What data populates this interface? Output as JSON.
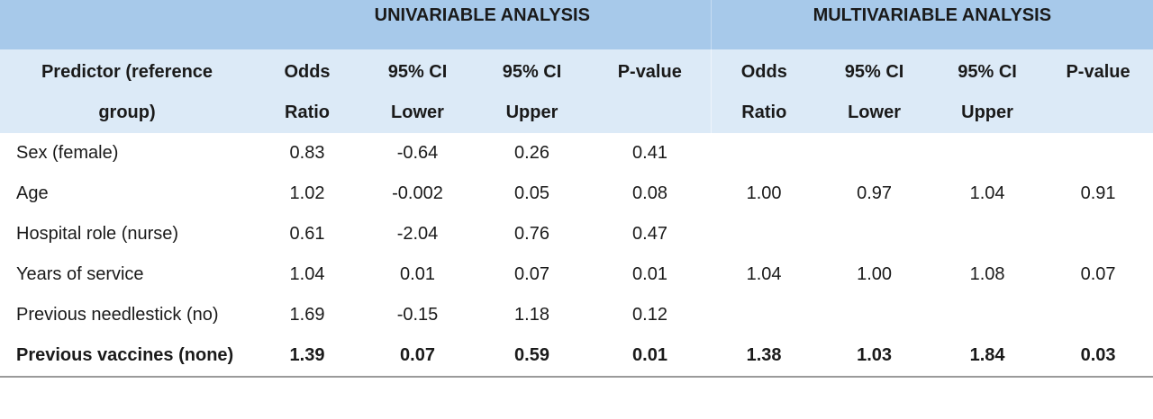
{
  "table": {
    "groups": {
      "univariable": "UNIVARIABLE ANALYSIS",
      "multivariable": "MULTIVARIABLE ANALYSIS"
    },
    "headers": {
      "predictor_line1": "Predictor (reference",
      "predictor_line2": "group)",
      "uni_or_line1": "Odds",
      "uni_or_line2": "Ratio",
      "uni_lower_line1": "95% CI",
      "uni_lower_line2": "Lower",
      "uni_upper_line1": "95% CI",
      "uni_upper_line2": "Upper",
      "uni_p": "P-value",
      "multi_or_line1": "Odds",
      "multi_or_line2": "Ratio",
      "multi_lower_line1": "95% CI",
      "multi_lower_line2": "Lower",
      "multi_upper_line1": "95% CI",
      "multi_upper_line2": "Upper",
      "multi_p": "P-value"
    },
    "rows": [
      {
        "predictor": "Sex (female)",
        "uni_or": "0.83",
        "uni_lower": "-0.64",
        "uni_upper": "0.26",
        "uni_p": "0.41",
        "multi_or": "",
        "multi_lower": "",
        "multi_upper": "",
        "multi_p": ""
      },
      {
        "predictor": "Age",
        "uni_or": "1.02",
        "uni_lower": "-0.002",
        "uni_upper": "0.05",
        "uni_p": "0.08",
        "multi_or": "1.00",
        "multi_lower": "0.97",
        "multi_upper": "1.04",
        "multi_p": "0.91"
      },
      {
        "predictor": "Hospital role (nurse)",
        "uni_or": "0.61",
        "uni_lower": "-2.04",
        "uni_upper": "0.76",
        "uni_p": "0.47",
        "multi_or": "",
        "multi_lower": "",
        "multi_upper": "",
        "multi_p": ""
      },
      {
        "predictor": "Years of service",
        "uni_or": "1.04",
        "uni_lower": "0.01",
        "uni_upper": "0.07",
        "uni_p": "0.01",
        "multi_or": "1.04",
        "multi_lower": "1.00",
        "multi_upper": "1.08",
        "multi_p": "0.07"
      },
      {
        "predictor": "Previous needlestick (no)",
        "uni_or": "1.69",
        "uni_lower": "-0.15",
        "uni_upper": "1.18",
        "uni_p": "0.12",
        "multi_or": "",
        "multi_lower": "",
        "multi_upper": "",
        "multi_p": ""
      },
      {
        "predictor": "Previous vaccines (none)",
        "uni_or": "1.39",
        "uni_lower": "0.07",
        "uni_upper": "0.59",
        "uni_p": "0.01",
        "multi_or": "1.38",
        "multi_lower": "1.03",
        "multi_upper": "1.84",
        "multi_p": "0.03"
      }
    ]
  }
}
